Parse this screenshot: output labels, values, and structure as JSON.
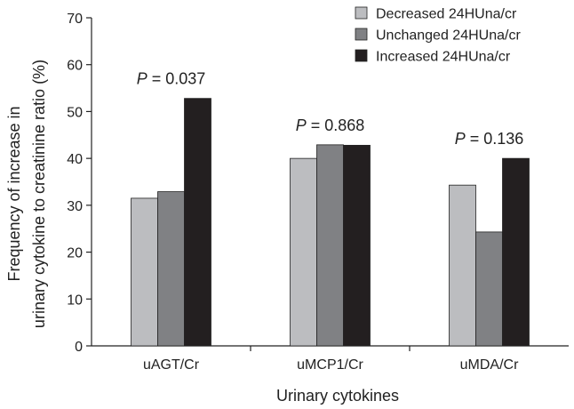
{
  "chart_data": {
    "type": "bar",
    "title": "",
    "xlabel": "Urinary cytokines",
    "ylabel_lines": [
      "Frequency of increase in",
      "urinary cytokine to creatinine ratio (%)"
    ],
    "ylim": [
      0,
      70
    ],
    "yticks": [
      0,
      10,
      20,
      30,
      40,
      50,
      60,
      70
    ],
    "categories": [
      "uAGT/Cr",
      "uMCP1/Cr",
      "uMDA/Cr"
    ],
    "series": [
      {
        "name": "Decreased 24HUna/cr",
        "color": "#bcbdc0",
        "values": [
          31.5,
          40.0,
          34.3
        ]
      },
      {
        "name": "Unchanged 24HUna/cr",
        "color": "#808184",
        "values": [
          32.9,
          42.9,
          24.3
        ]
      },
      {
        "name": "Increased 24HUna/cr",
        "color": "#231f20",
        "values": [
          52.8,
          42.8,
          40.0
        ]
      }
    ],
    "annotations": [
      {
        "category": "uAGT/Cr",
        "label_p": "P",
        "label_rest": " = 0.037"
      },
      {
        "category": "uMCP1/Cr",
        "label_p": "P",
        "label_rest": " = 0.868"
      },
      {
        "category": "uMDA/Cr",
        "label_p": "P",
        "label_rest": " = 0.136"
      }
    ],
    "legend_position": "top-right",
    "grid": false
  }
}
